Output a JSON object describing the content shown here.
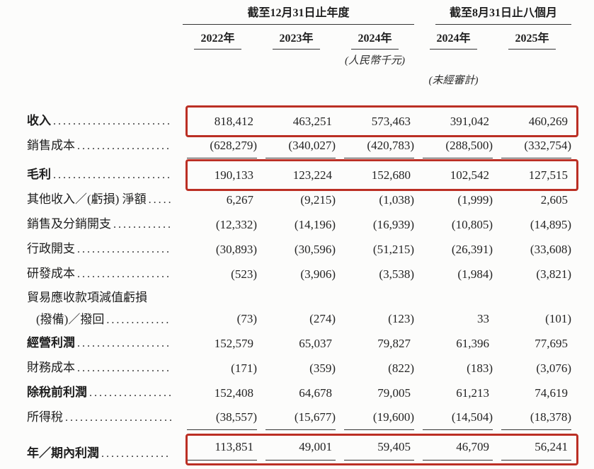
{
  "page": {
    "background": "#fcfcfb",
    "accent_red": "#bb2f24",
    "rule_color": "#343434"
  },
  "table": {
    "period_groups": [
      {
        "label": "截至12月31日止年度",
        "columns_spanned": 3
      },
      {
        "label": "截至8月31日止八個月",
        "columns_spanned": 2
      }
    ],
    "year_columns": [
      "2022年",
      "2023年",
      "2024年",
      "2024年",
      "2025年"
    ],
    "currency_note": "(人民幣千元)",
    "unaudited_note": "(未經審計)",
    "rows": [
      {
        "label": "收入",
        "bold": true,
        "boxed": true,
        "values": [
          "818,412",
          "463,251",
          "573,463",
          "391,042",
          "460,269"
        ]
      },
      {
        "label": "銷售成本",
        "bold": false,
        "rule": "single",
        "values": [
          "(628,279)",
          "(340,027)",
          "(420,783)",
          "(288,500)",
          "(332,754)"
        ]
      },
      {
        "label": "毛利",
        "bold": true,
        "boxed": true,
        "values": [
          "190,133",
          "123,224",
          "152,680",
          "102,542",
          "127,515"
        ]
      },
      {
        "label": "其他收入／(虧損) 淨額",
        "bold": false,
        "values": [
          "6,267",
          "(9,215)",
          "(1,038)",
          "(1,999)",
          "2,605"
        ]
      },
      {
        "label": "銷售及分銷開支",
        "bold": false,
        "values": [
          "(12,332)",
          "(14,196)",
          "(16,939)",
          "(10,805)",
          "(14,895)"
        ]
      },
      {
        "label": "行政開支",
        "bold": false,
        "values": [
          "(30,893)",
          "(30,596)",
          "(51,215)",
          "(26,391)",
          "(33,608)"
        ]
      },
      {
        "label": "研發成本",
        "bold": false,
        "values": [
          "(523)",
          "(3,906)",
          "(3,538)",
          "(1,984)",
          "(3,821)"
        ]
      },
      {
        "label": "貿易應收款項減值虧損",
        "label_line2": "(撥備)／撥回",
        "bold": false,
        "values": [
          "(73)",
          "(274)",
          "(123)",
          "33",
          "(101)"
        ]
      },
      {
        "label": "經營利潤",
        "bold": true,
        "values": [
          "152,579",
          "65,037",
          "79,827",
          "61,396",
          "77,695"
        ]
      },
      {
        "label": "財務成本",
        "bold": false,
        "values": [
          "(171)",
          "(359)",
          "(822)",
          "(183)",
          "(3,076)"
        ]
      },
      {
        "label": "除稅前利潤",
        "bold": true,
        "values": [
          "152,408",
          "64,678",
          "79,005",
          "61,213",
          "74,619"
        ]
      },
      {
        "label": "所得稅",
        "bold": false,
        "rule": "single",
        "values": [
          "(38,557)",
          "(15,677)",
          "(19,600)",
          "(14,504)",
          "(18,378)"
        ]
      },
      {
        "label": "年／期內利潤",
        "bold": true,
        "boxed": true,
        "rule": "double",
        "values": [
          "113,851",
          "49,001",
          "59,405",
          "46,709",
          "56,241"
        ]
      }
    ]
  }
}
